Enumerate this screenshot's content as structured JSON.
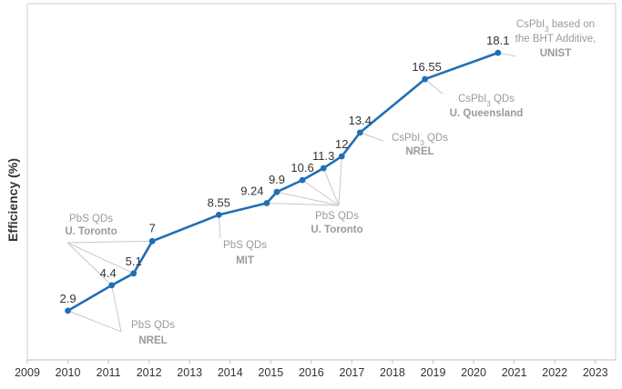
{
  "chart_data": {
    "type": "line",
    "title": "",
    "xlabel": "",
    "ylabel": "Efficiency (%)",
    "xlim": [
      2009,
      2023.5
    ],
    "ylim": [
      0,
      21
    ],
    "x_ticks": [
      "2009",
      "2010",
      "2011",
      "2012",
      "2013",
      "2014",
      "2015",
      "2016",
      "2017",
      "2018",
      "2019",
      "2020",
      "2021",
      "2022",
      "2023"
    ],
    "grid": false,
    "legend": "none",
    "line_color": "#1f6fb5",
    "series": [
      {
        "x": [
          2010.0,
          2011.08,
          2011.62,
          2012.08,
          2013.72,
          2014.9,
          2015.15,
          2015.78,
          2016.3,
          2016.75,
          2017.2,
          2018.8,
          2020.6
        ],
        "values": [
          2.9,
          4.4,
          5.1,
          7,
          8.55,
          9.24,
          9.9,
          10.6,
          11.3,
          12,
          13.4,
          16.55,
          18.1
        ],
        "labels": [
          "2.9",
          "4.4",
          "5.1",
          "7",
          "8.55",
          "9.24",
          "9.9",
          "10.6",
          "11.3",
          "12",
          "13.4",
          "16.55",
          "18.1"
        ]
      }
    ],
    "annotations": [
      {
        "material": "PbS QDs",
        "group": "U. Toronto",
        "targets": [
          1,
          2,
          3
        ]
      },
      {
        "material": "PbS QDs",
        "group": "NREL",
        "targets": [
          0,
          1
        ]
      },
      {
        "material": "PbS QDs",
        "group": "MIT",
        "targets": [
          4
        ]
      },
      {
        "material": "PbS QDs",
        "group": "U. Toronto",
        "targets": [
          5,
          6,
          7,
          8,
          9
        ]
      },
      {
        "material": "CsPbI",
        "subscript": "3",
        "suffix": " QDs",
        "group": "NREL",
        "targets": [
          10
        ]
      },
      {
        "material": "CsPbI",
        "subscript": "3",
        "suffix": " QDs",
        "group": "U. Queensland",
        "targets": [
          11
        ]
      },
      {
        "material": "CsPbI",
        "subscript": "3",
        "suffix": " based on",
        "line2": "the BHT Additive,",
        "group": "UNIST",
        "targets": [
          12
        ]
      }
    ]
  }
}
